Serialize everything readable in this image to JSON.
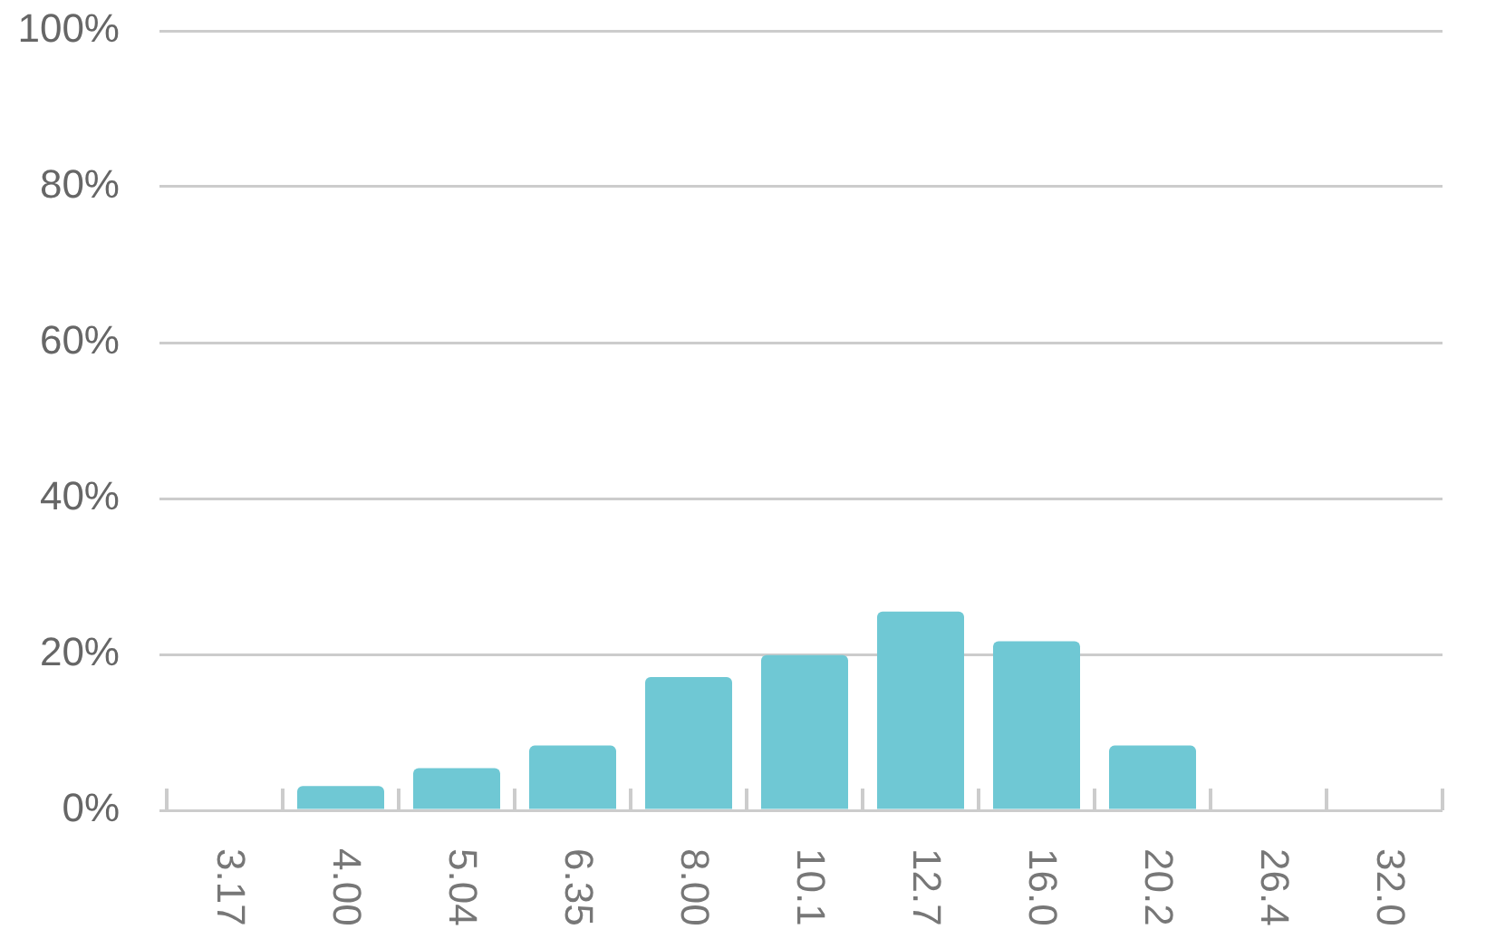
{
  "chart_data": {
    "type": "bar",
    "categories": [
      "3.17",
      "4.00",
      "5.04",
      "6.35",
      "8.00",
      "10.1",
      "12.7",
      "16.0",
      "20.2",
      "26.4",
      "32.0"
    ],
    "values": [
      0,
      3.1,
      5.4,
      8.3,
      17.1,
      19.9,
      25.5,
      21.7,
      8.3,
      0,
      0
    ],
    "color": "#6fc8d4",
    "ylim": [
      0,
      100
    ],
    "yticks": [
      {
        "value": 0,
        "label": "0%"
      },
      {
        "value": 20,
        "label": "20%"
      },
      {
        "value": 40,
        "label": "40%"
      },
      {
        "value": 60,
        "label": "60%"
      },
      {
        "value": 80,
        "label": "80%"
      },
      {
        "value": 100,
        "label": "100%"
      }
    ],
    "grid": "y",
    "legend": false
  }
}
